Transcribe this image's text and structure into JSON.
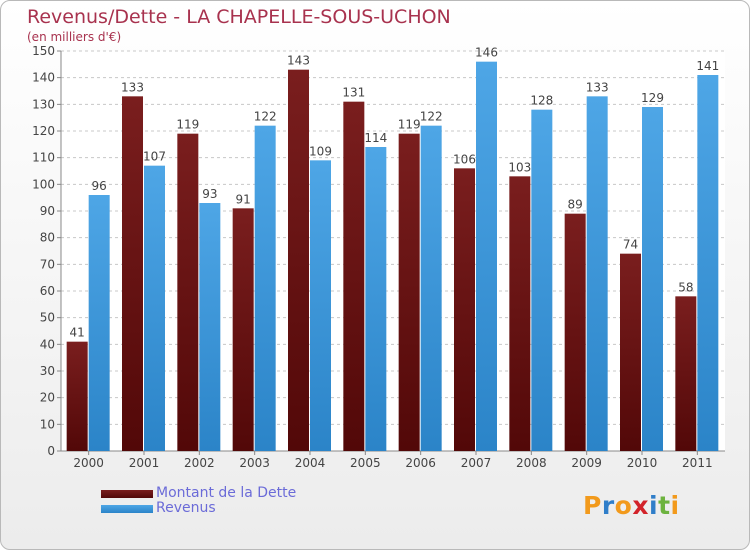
{
  "title": "Revenus/Dette - LA CHAPELLE-SOUS-UCHON",
  "subtitle": "(en milliers d'€)",
  "legend": {
    "dette_label": "Montant de la Dette",
    "revenus_label": "Revenus"
  },
  "logo": {
    "letters": [
      "P",
      "r",
      "o",
      "x",
      "i",
      "t",
      "i"
    ],
    "colors": [
      "#f29a1c",
      "#2f7ec9",
      "#f29a1c",
      "#d2232a",
      "#2f7ec9",
      "#6db33f",
      "#f29a1c"
    ]
  },
  "colors": {
    "dette": "#7a1e1e",
    "dette_dark": "#520808",
    "revenus": "#4ea6e6",
    "revenus_dark": "#2b84c8"
  },
  "chart_data": {
    "type": "bar",
    "title": "Revenus/Dette - LA CHAPELLE-SOUS-UCHON",
    "subtitle": "(en milliers d'€)",
    "categories": [
      "2000",
      "2001",
      "2002",
      "2003",
      "2004",
      "2005",
      "2006",
      "2007",
      "2008",
      "2009",
      "2010",
      "2011"
    ],
    "series": [
      {
        "name": "Montant de la Dette",
        "values": [
          41,
          133,
          119,
          91,
          143,
          131,
          119,
          106,
          103,
          89,
          74,
          58
        ]
      },
      {
        "name": "Revenus",
        "values": [
          96,
          107,
          93,
          122,
          109,
          114,
          122,
          146,
          128,
          133,
          129,
          141
        ]
      }
    ],
    "ylim": [
      0,
      150
    ],
    "yticks": [
      0,
      10,
      20,
      30,
      40,
      50,
      60,
      70,
      80,
      90,
      100,
      110,
      120,
      130,
      140,
      150
    ],
    "grid": true,
    "legend_position": "bottom-left"
  }
}
